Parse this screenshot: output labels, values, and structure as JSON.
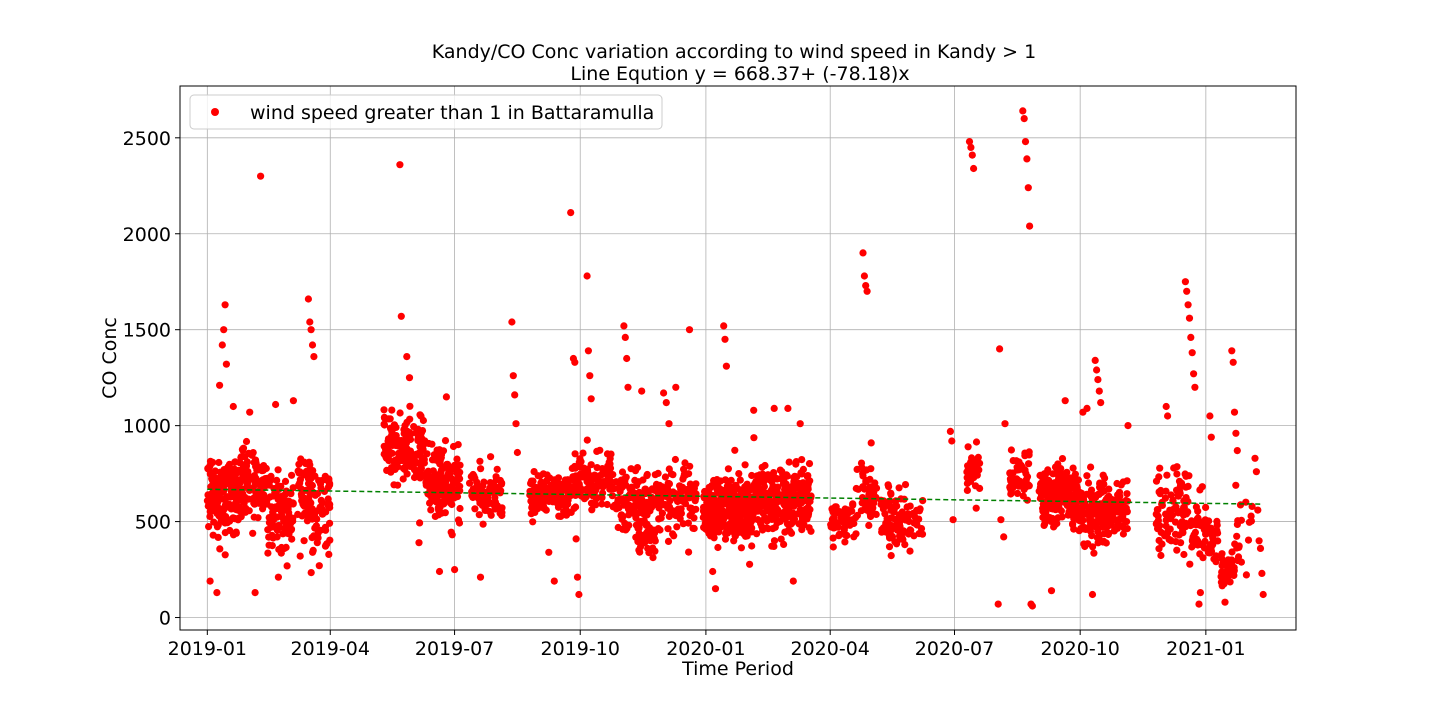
{
  "chart_data": {
    "type": "scatter",
    "title": "Kandy/CO Conc variation according to wind speed in Kandy > 1",
    "subtitle": "Line Eqution y = 668.37+ (-78.18)x",
    "xlabel": "Time Period",
    "ylabel": "CO Conc",
    "x_ticks": [
      "2019-01",
      "2019-04",
      "2019-07",
      "2019-10",
      "2020-01",
      "2020-04",
      "2020-07",
      "2020-10",
      "2021-01"
    ],
    "y_ticks": [
      "0",
      "500",
      "1000",
      "1500",
      "2000",
      "2500"
    ],
    "xlim": [
      "2018-12-12",
      "2021-03-08"
    ],
    "ylim": [
      -65,
      2770
    ],
    "grid": true,
    "legend_position": "top-left",
    "colors": {
      "scatter": "#ff0000",
      "trend": "#008000"
    },
    "series": [
      {
        "name": "wind speed greater than 1 in Battaramulla",
        "kind": "scatter",
        "clusters": [
          {
            "start": "2019-01-01",
            "end": "2019-01-25",
            "center": 640,
            "spread": 170,
            "count": 180
          },
          {
            "start": "2019-01-25",
            "end": "2019-02-14",
            "center": 700,
            "spread": 160,
            "count": 110
          },
          {
            "start": "2019-02-14",
            "end": "2019-03-05",
            "center": 560,
            "spread": 160,
            "count": 110
          },
          {
            "start": "2019-03-08",
            "end": "2019-03-18",
            "center": 650,
            "spread": 170,
            "count": 45
          },
          {
            "start": "2019-03-18",
            "end": "2019-04-01",
            "center": 560,
            "spread": 190,
            "count": 60
          },
          {
            "start": "2019-05-10",
            "end": "2019-06-10",
            "center": 880,
            "spread": 140,
            "count": 150
          },
          {
            "start": "2019-06-10",
            "end": "2019-07-05",
            "center": 700,
            "spread": 160,
            "count": 150
          },
          {
            "start": "2019-07-12",
            "end": "2019-08-05",
            "center": 660,
            "spread": 120,
            "count": 80
          },
          {
            "start": "2019-08-25",
            "end": "2019-09-25",
            "center": 640,
            "spread": 90,
            "count": 140
          },
          {
            "start": "2019-09-25",
            "end": "2019-10-25",
            "center": 720,
            "spread": 110,
            "count": 110
          },
          {
            "start": "2019-10-25",
            "end": "2019-11-25",
            "center": 620,
            "spread": 140,
            "count": 120
          },
          {
            "start": "2019-11-10",
            "end": "2019-11-25",
            "center": 400,
            "spread": 70,
            "count": 45
          },
          {
            "start": "2019-11-25",
            "end": "2019-12-25",
            "center": 620,
            "spread": 140,
            "count": 130
          },
          {
            "start": "2019-12-30",
            "end": "2020-02-05",
            "center": 560,
            "spread": 140,
            "count": 320
          },
          {
            "start": "2020-02-05",
            "end": "2020-03-18",
            "center": 610,
            "spread": 150,
            "count": 300
          },
          {
            "start": "2020-04-01",
            "end": "2020-04-20",
            "center": 500,
            "spread": 80,
            "count": 60
          },
          {
            "start": "2020-04-20",
            "end": "2020-05-05",
            "center": 650,
            "spread": 130,
            "count": 45
          },
          {
            "start": "2020-05-08",
            "end": "2020-05-22",
            "center": 520,
            "spread": 140,
            "count": 60
          },
          {
            "start": "2020-05-22",
            "end": "2020-06-08",
            "center": 500,
            "spread": 120,
            "count": 40
          },
          {
            "start": "2020-07-10",
            "end": "2020-07-20",
            "center": 770,
            "spread": 100,
            "count": 35
          },
          {
            "start": "2020-08-10",
            "end": "2020-08-25",
            "center": 740,
            "spread": 100,
            "count": 55
          },
          {
            "start": "2020-09-01",
            "end": "2020-09-30",
            "center": 640,
            "spread": 130,
            "count": 200
          },
          {
            "start": "2020-09-30",
            "end": "2020-10-22",
            "center": 560,
            "spread": 140,
            "count": 130
          },
          {
            "start": "2020-10-22",
            "end": "2020-11-05",
            "center": 560,
            "spread": 110,
            "count": 60
          },
          {
            "start": "2020-11-25",
            "end": "2020-12-20",
            "center": 560,
            "spread": 170,
            "count": 90
          },
          {
            "start": "2020-12-20",
            "end": "2021-01-10",
            "center": 460,
            "spread": 150,
            "count": 70
          },
          {
            "start": "2021-01-12",
            "end": "2021-01-22",
            "center": 250,
            "spread": 70,
            "count": 45
          },
          {
            "start": "2021-01-22",
            "end": "2021-02-05",
            "center": 470,
            "spread": 180,
            "count": 20
          }
        ],
        "points": [
          [
            "2019-01-03",
            190
          ],
          [
            "2019-01-08",
            130
          ],
          [
            "2019-01-10",
            1210
          ],
          [
            "2019-01-12",
            1420
          ],
          [
            "2019-01-13",
            1500
          ],
          [
            "2019-01-14",
            1630
          ],
          [
            "2019-01-15",
            1320
          ],
          [
            "2019-01-20",
            1100
          ],
          [
            "2019-02-01",
            1070
          ],
          [
            "2019-02-05",
            130
          ],
          [
            "2019-02-09",
            2300
          ],
          [
            "2019-02-20",
            1110
          ],
          [
            "2019-02-22",
            210
          ],
          [
            "2019-03-05",
            1130
          ],
          [
            "2019-03-10",
            320
          ],
          [
            "2019-03-16",
            1660
          ],
          [
            "2019-03-17",
            1540
          ],
          [
            "2019-03-18",
            1500
          ],
          [
            "2019-03-19",
            1420
          ],
          [
            "2019-03-20",
            1360
          ],
          [
            "2019-03-24",
            270
          ],
          [
            "2019-05-22",
            2360
          ],
          [
            "2019-05-23",
            1570
          ],
          [
            "2019-05-27",
            1360
          ],
          [
            "2019-05-29",
            1250
          ],
          [
            "2019-06-05",
            390
          ],
          [
            "2019-06-20",
            240
          ],
          [
            "2019-06-25",
            1150
          ],
          [
            "2019-07-01",
            250
          ],
          [
            "2019-07-20",
            210
          ],
          [
            "2019-08-12",
            1540
          ],
          [
            "2019-08-13",
            1260
          ],
          [
            "2019-08-14",
            1160
          ],
          [
            "2019-08-15",
            1010
          ],
          [
            "2019-08-16",
            860
          ],
          [
            "2019-09-08",
            340
          ],
          [
            "2019-09-12",
            190
          ],
          [
            "2019-09-24",
            2110
          ],
          [
            "2019-09-26",
            1350
          ],
          [
            "2019-09-27",
            1330
          ],
          [
            "2019-09-28",
            410
          ],
          [
            "2019-09-29",
            210
          ],
          [
            "2019-09-30",
            120
          ],
          [
            "2019-10-06",
            1780
          ],
          [
            "2019-10-07",
            1390
          ],
          [
            "2019-10-08",
            1260
          ],
          [
            "2019-10-09",
            1140
          ],
          [
            "2019-11-02",
            1520
          ],
          [
            "2019-11-03",
            1460
          ],
          [
            "2019-11-04",
            1350
          ],
          [
            "2019-11-05",
            1200
          ],
          [
            "2019-11-15",
            1180
          ],
          [
            "2019-12-01",
            1170
          ],
          [
            "2019-12-03",
            1120
          ],
          [
            "2019-12-05",
            1010
          ],
          [
            "2019-12-10",
            1200
          ],
          [
            "2019-12-20",
            1500
          ],
          [
            "2020-01-06",
            240
          ],
          [
            "2020-01-08",
            150
          ],
          [
            "2020-01-14",
            1520
          ],
          [
            "2020-01-15",
            1450
          ],
          [
            "2020-01-16",
            1310
          ],
          [
            "2020-02-05",
            1080
          ],
          [
            "2020-02-20",
            1090
          ],
          [
            "2020-03-01",
            1090
          ],
          [
            "2020-03-05",
            190
          ],
          [
            "2020-03-10",
            1010
          ],
          [
            "2020-04-25",
            1900
          ],
          [
            "2020-04-26",
            1780
          ],
          [
            "2020-04-27",
            1730
          ],
          [
            "2020-04-28",
            1700
          ],
          [
            "2020-05-01",
            910
          ],
          [
            "2020-06-28",
            970
          ],
          [
            "2020-06-29",
            920
          ],
          [
            "2020-06-30",
            510
          ],
          [
            "2020-07-12",
            2480
          ],
          [
            "2020-07-13",
            2450
          ],
          [
            "2020-07-14",
            2410
          ],
          [
            "2020-07-15",
            2340
          ],
          [
            "2020-08-02",
            70
          ],
          [
            "2020-08-03",
            1400
          ],
          [
            "2020-08-04",
            510
          ],
          [
            "2020-08-06",
            420
          ],
          [
            "2020-08-07",
            1010
          ],
          [
            "2020-08-20",
            2640
          ],
          [
            "2020-08-21",
            2600
          ],
          [
            "2020-08-22",
            2480
          ],
          [
            "2020-08-23",
            2390
          ],
          [
            "2020-08-24",
            2240
          ],
          [
            "2020-08-25",
            2040
          ],
          [
            "2020-08-26",
            70
          ],
          [
            "2020-08-27",
            60
          ],
          [
            "2020-09-10",
            140
          ],
          [
            "2020-09-20",
            1130
          ],
          [
            "2020-10-03",
            1070
          ],
          [
            "2020-10-06",
            1090
          ],
          [
            "2020-10-10",
            120
          ],
          [
            "2020-10-12",
            1340
          ],
          [
            "2020-10-13",
            1290
          ],
          [
            "2020-10-14",
            1240
          ],
          [
            "2020-10-15",
            1180
          ],
          [
            "2020-10-16",
            1120
          ],
          [
            "2020-11-05",
            1000
          ],
          [
            "2020-12-03",
            1100
          ],
          [
            "2020-12-04",
            1050
          ],
          [
            "2020-12-17",
            1750
          ],
          [
            "2020-12-18",
            1700
          ],
          [
            "2020-12-19",
            1630
          ],
          [
            "2020-12-20",
            1560
          ],
          [
            "2020-12-21",
            1460
          ],
          [
            "2020-12-22",
            1380
          ],
          [
            "2020-12-23",
            1270
          ],
          [
            "2020-12-24",
            1200
          ],
          [
            "2020-12-27",
            70
          ],
          [
            "2020-12-28",
            130
          ],
          [
            "2021-01-04",
            1050
          ],
          [
            "2021-01-05",
            940
          ],
          [
            "2021-01-15",
            80
          ],
          [
            "2021-01-20",
            1390
          ],
          [
            "2021-01-21",
            1330
          ],
          [
            "2021-01-22",
            1070
          ],
          [
            "2021-01-23",
            960
          ],
          [
            "2021-01-24",
            870
          ],
          [
            "2021-02-06",
            830
          ],
          [
            "2021-02-07",
            760
          ],
          [
            "2021-02-08",
            560
          ],
          [
            "2021-02-09",
            400
          ],
          [
            "2021-02-10",
            360
          ],
          [
            "2021-02-11",
            230
          ],
          [
            "2021-02-12",
            120
          ]
        ]
      },
      {
        "name": "",
        "kind": "trend",
        "equation": "y = 668.37+ (-78.18)x",
        "x": [
          "2019-01-01",
          "2021-02-10"
        ],
        "y": [
          668.37,
          591.0
        ]
      }
    ]
  }
}
